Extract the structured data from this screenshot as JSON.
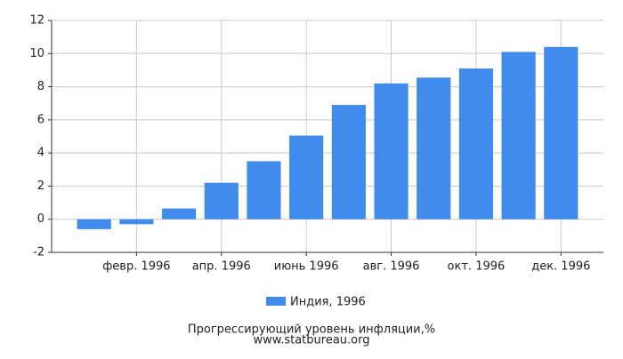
{
  "chart_data": {
    "type": "bar",
    "title": "Прогрессирующий уровень инфляции,%",
    "subtitle": "www.statbureau.org",
    "categories": [
      null,
      "февр. 1996",
      null,
      "апр. 1996",
      null,
      "июнь 1996",
      null,
      "авг. 1996",
      null,
      "окт. 1996",
      null,
      "дек. 1996"
    ],
    "series": [
      {
        "name": "Индия, 1996",
        "color": "#418bec",
        "values": [
          -0.6,
          -0.3,
          0.65,
          2.2,
          3.5,
          5.05,
          6.9,
          8.2,
          8.55,
          9.1,
          10.1,
          10.4
        ]
      }
    ],
    "ylim": [
      -2,
      12
    ],
    "yticks": [
      -2,
      0,
      2,
      4,
      6,
      8,
      10,
      12
    ],
    "grid": true
  }
}
